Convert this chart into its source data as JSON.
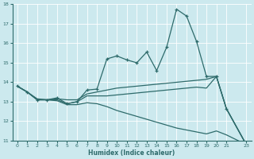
{
  "xlabel": "Humidex (Indice chaleur)",
  "background_color": "#cce9ee",
  "line_color": "#2e6b6b",
  "x": [
    0,
    1,
    2,
    3,
    4,
    5,
    6,
    7,
    8,
    9,
    10,
    11,
    12,
    13,
    14,
    15,
    16,
    17,
    18,
    19,
    20,
    21,
    23
  ],
  "line1_x": [
    0,
    1,
    2,
    3,
    4,
    5,
    6,
    7,
    8,
    9,
    10,
    11,
    12,
    13,
    14,
    15,
    16,
    17,
    18,
    19,
    20,
    21,
    23
  ],
  "line1_y": [
    13.8,
    13.5,
    13.1,
    13.1,
    13.2,
    12.9,
    13.0,
    13.6,
    13.65,
    15.2,
    15.35,
    15.15,
    15.0,
    15.55,
    14.6,
    15.8,
    17.75,
    17.4,
    16.1,
    14.3,
    14.3,
    12.65,
    10.8
  ],
  "line2_x": [
    0,
    1,
    2,
    3,
    4,
    5,
    6,
    7,
    8,
    9,
    10,
    11,
    12,
    13,
    14,
    15,
    16,
    17,
    18,
    19,
    20,
    21,
    23
  ],
  "line2_y": [
    13.8,
    13.5,
    13.15,
    13.1,
    13.15,
    13.1,
    13.1,
    13.4,
    13.5,
    13.6,
    13.7,
    13.75,
    13.8,
    13.85,
    13.9,
    13.95,
    14.0,
    14.05,
    14.1,
    14.15,
    14.3,
    12.65,
    10.8
  ],
  "line3_x": [
    0,
    1,
    2,
    3,
    4,
    5,
    6,
    7,
    8,
    9,
    10,
    11,
    12,
    13,
    14,
    15,
    16,
    17,
    18,
    19,
    20,
    21,
    23
  ],
  "line3_y": [
    13.8,
    13.5,
    13.1,
    13.1,
    13.1,
    12.9,
    13.0,
    13.3,
    13.3,
    13.3,
    13.35,
    13.4,
    13.45,
    13.5,
    13.55,
    13.6,
    13.65,
    13.7,
    13.75,
    13.7,
    14.3,
    12.65,
    10.8
  ],
  "line4_x": [
    0,
    1,
    2,
    3,
    4,
    5,
    6,
    7,
    8,
    9,
    10,
    11,
    12,
    13,
    14,
    15,
    16,
    17,
    18,
    19,
    20,
    21,
    23
  ],
  "line4_y": [
    13.8,
    13.5,
    13.1,
    13.1,
    13.05,
    12.85,
    12.85,
    12.95,
    12.9,
    12.75,
    12.55,
    12.4,
    12.25,
    12.1,
    11.95,
    11.8,
    11.65,
    11.55,
    11.45,
    11.35,
    11.5,
    11.3,
    10.8
  ],
  "ylim": [
    11,
    18
  ],
  "yticks": [
    11,
    12,
    13,
    14,
    15,
    16,
    17,
    18
  ],
  "xlim": [
    -0.5,
    23.5
  ],
  "xticks": [
    0,
    1,
    2,
    3,
    4,
    5,
    6,
    7,
    8,
    9,
    10,
    11,
    12,
    13,
    14,
    15,
    16,
    17,
    18,
    19,
    20,
    21,
    23
  ]
}
